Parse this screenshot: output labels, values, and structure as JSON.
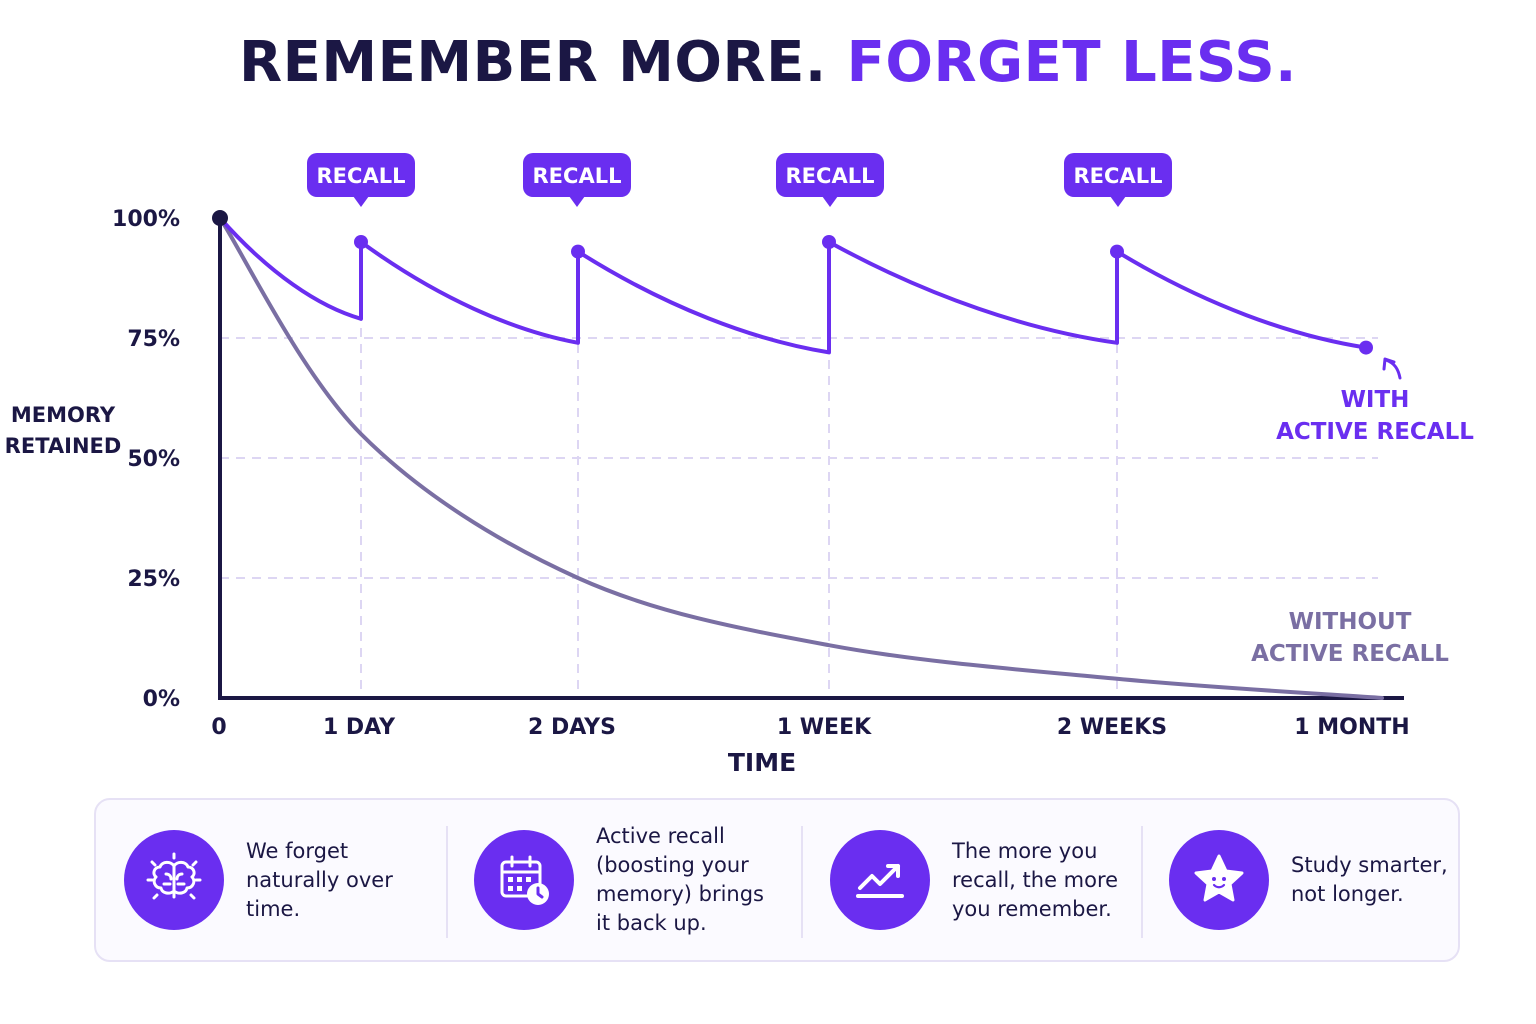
{
  "title": {
    "part1": "REMEMBER MORE.",
    "part2": "FORGET LESS."
  },
  "colors": {
    "accent": "#6a2ef0",
    "dark": "#1b1744",
    "without_line": "#7a6fa3",
    "grid": "#ddd6f3"
  },
  "chart_data": {
    "type": "line",
    "title": "",
    "ylabel": "MEMORY RETAINED",
    "xlabel": "TIME",
    "ylim": [
      0,
      100
    ],
    "y_ticks": [
      "100%",
      "75%",
      "50%",
      "25%",
      "0%"
    ],
    "y_tick_values": [
      100,
      75,
      50,
      25,
      0
    ],
    "x_ticks": [
      "0",
      "1 DAY",
      "2 DAYS",
      "1 WEEK",
      "2 WEEKS",
      "1 MONTH"
    ],
    "grid": true,
    "series": [
      {
        "name": "WITHOUT ACTIVE RECALL",
        "points": [
          {
            "x": "0",
            "y": 100
          },
          {
            "x": "1 DAY",
            "y": 55
          },
          {
            "x": "2 DAYS",
            "y": 25
          },
          {
            "x": "1 WEEK",
            "y": 11
          },
          {
            "x": "2 WEEKS",
            "y": 4
          },
          {
            "x": "1 MONTH",
            "y": 0
          }
        ]
      },
      {
        "name": "WITH ACTIVE RECALL",
        "segments": [
          {
            "from": "0",
            "to": "1 DAY",
            "start": 100,
            "end": 79
          },
          {
            "from": "1 DAY",
            "to": "2 DAYS",
            "start": 95,
            "end": 74
          },
          {
            "from": "2 DAYS",
            "to": "1 WEEK",
            "start": 93,
            "end": 72
          },
          {
            "from": "1 WEEK",
            "to": "2 WEEKS",
            "start": 95,
            "end": 74
          },
          {
            "from": "2 WEEKS",
            "to": "1 MONTH",
            "start": 93,
            "end": 73
          }
        ]
      }
    ],
    "annotations": [
      {
        "text": "RECALL",
        "x": "1 DAY"
      },
      {
        "text": "RECALL",
        "x": "2 DAYS"
      },
      {
        "text": "RECALL",
        "x": "1 WEEK"
      },
      {
        "text": "RECALL",
        "x": "2 WEEKS"
      }
    ],
    "series_labels": {
      "with": "WITH\nACTIVE RECALL",
      "without": "WITHOUT\nACTIVE RECALL"
    }
  },
  "info_panel": {
    "items": [
      {
        "icon": "brain-icon",
        "text": "We forget\nnaturally over\ntime."
      },
      {
        "icon": "calendar-clock-icon",
        "text": "Active recall\n(boosting your\nmemory) brings\nit back up."
      },
      {
        "icon": "trend-up-icon",
        "text": "The more you\nrecall, the more\nyou remember."
      },
      {
        "icon": "star-smile-icon",
        "text": "Study smarter,\nnot longer."
      }
    ]
  }
}
